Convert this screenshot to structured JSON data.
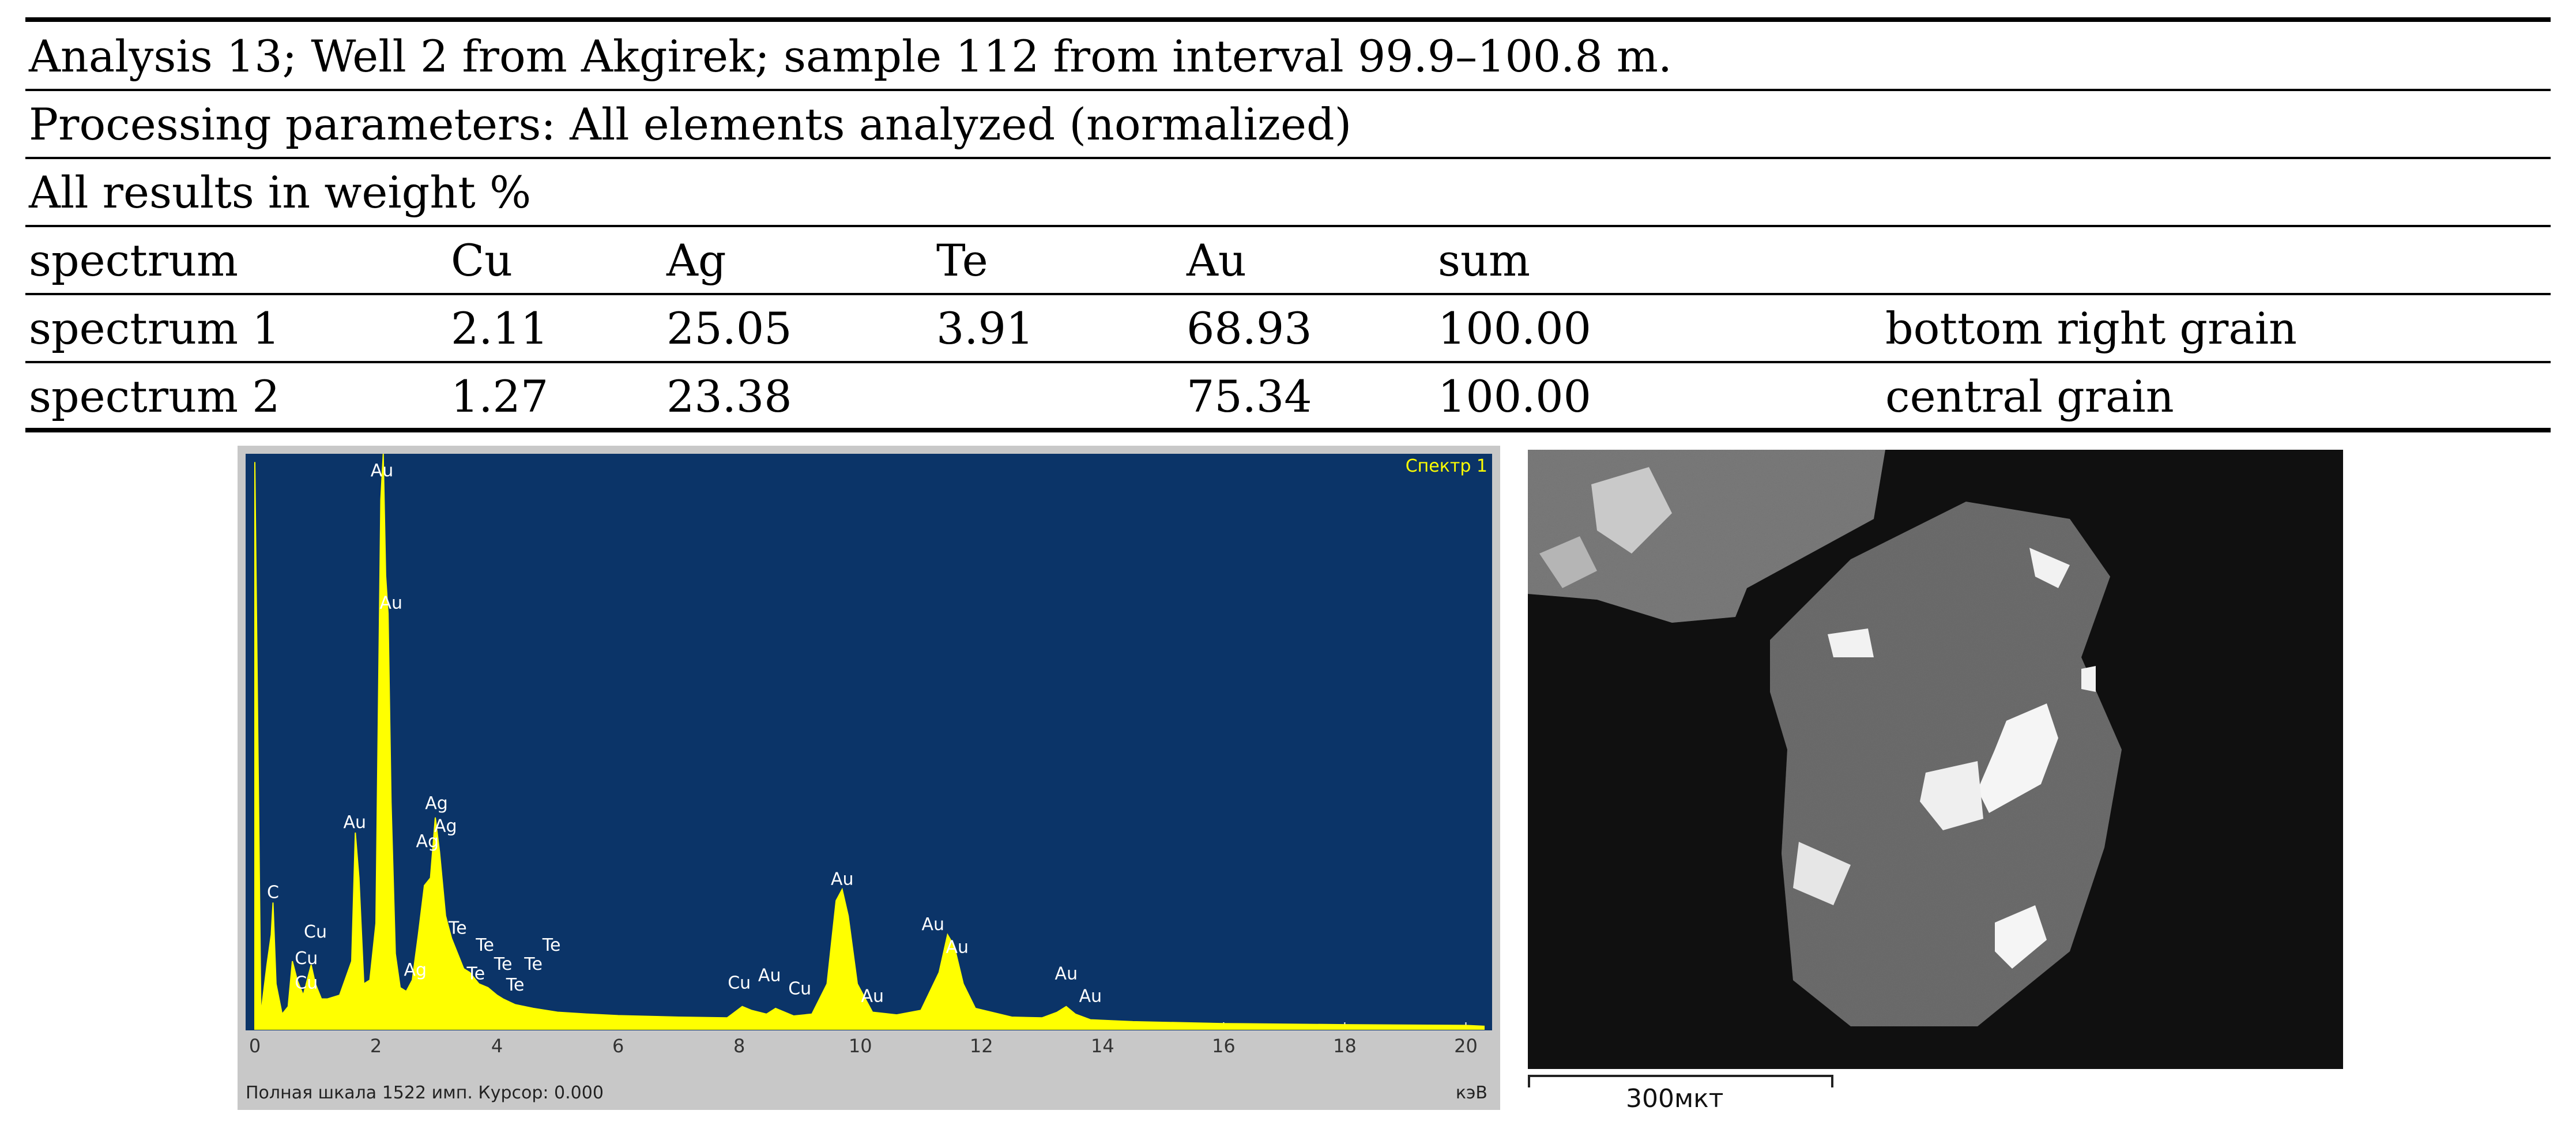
{
  "table": {
    "header_lines": [
      "Analysis 13; Well 2 from Akgirek; sample 112 from interval 99.9–100.8 m.",
      "Processing parameters: All elements analyzed (normalized)",
      "All results in weight %"
    ],
    "columns": [
      "spectrum",
      "Cu",
      "Ag",
      "Te",
      "Au",
      "sum",
      ""
    ],
    "rows": [
      [
        "spectrum 1",
        "2.11",
        "25.05",
        "3.91",
        "68.93",
        "100.00",
        "bottom right grain"
      ],
      [
        "spectrum 2",
        "1.27",
        "23.38",
        "",
        "75.34",
        "100.00",
        "central grain"
      ]
    ]
  },
  "spectrum": {
    "title": "Спектр 1",
    "status_text": "Полная шкала 1522 имп. Курсор: 0.000",
    "unit": "кэВ",
    "x_ticks": [
      "0",
      "2",
      "4",
      "6",
      "8",
      "10",
      "12",
      "14",
      "16",
      "18",
      "20"
    ],
    "peak_labels": [
      {
        "text": "Au",
        "kev": 2.1,
        "counts": 1450
      },
      {
        "text": "Au",
        "kev": 2.25,
        "counts": 1100
      },
      {
        "text": "Au",
        "kev": 1.65,
        "counts": 520
      },
      {
        "text": "Ag",
        "kev": 3.0,
        "counts": 570
      },
      {
        "text": "Ag",
        "kev": 3.15,
        "counts": 510
      },
      {
        "text": "Ag",
        "kev": 2.85,
        "counts": 470
      },
      {
        "text": "Te",
        "kev": 3.35,
        "counts": 240
      },
      {
        "text": "Te",
        "kev": 3.8,
        "counts": 195
      },
      {
        "text": "Te",
        "kev": 4.9,
        "counts": 195
      },
      {
        "text": "Te",
        "kev": 4.1,
        "counts": 145
      },
      {
        "text": "Te",
        "kev": 4.6,
        "counts": 145
      },
      {
        "text": "Te",
        "kev": 3.65,
        "counts": 120
      },
      {
        "text": "Te",
        "kev": 4.3,
        "counts": 90
      },
      {
        "text": "Ag",
        "kev": 2.65,
        "counts": 130
      },
      {
        "text": "C",
        "kev": 0.3,
        "counts": 335
      },
      {
        "text": "Cu",
        "kev": 1.0,
        "counts": 230
      },
      {
        "text": "Cu",
        "kev": 0.85,
        "counts": 160
      },
      {
        "text": "Cu",
        "kev": 0.85,
        "counts": 95
      },
      {
        "text": "Cu",
        "kev": 8.0,
        "counts": 95
      },
      {
        "text": "Au",
        "kev": 8.5,
        "counts": 115
      },
      {
        "text": "Cu",
        "kev": 9.0,
        "counts": 80
      },
      {
        "text": "Au",
        "kev": 9.7,
        "counts": 370
      },
      {
        "text": "Au",
        "kev": 10.2,
        "counts": 60
      },
      {
        "text": "Au",
        "kev": 11.2,
        "counts": 250
      },
      {
        "text": "Au",
        "kev": 11.6,
        "counts": 190
      },
      {
        "text": "Au",
        "kev": 13.4,
        "counts": 120
      },
      {
        "text": "Au",
        "kev": 13.8,
        "counts": 60
      }
    ]
  },
  "chart_data": {
    "type": "line",
    "title": "Спектр 1",
    "xlabel": "кэВ",
    "ylabel": "",
    "xlim": [
      0,
      20.3
    ],
    "ylim": [
      0,
      1522
    ],
    "x": [
      0.0,
      0.1,
      0.2,
      0.27,
      0.3,
      0.35,
      0.45,
      0.55,
      0.62,
      0.7,
      0.8,
      0.93,
      1.0,
      1.1,
      1.2,
      1.4,
      1.6,
      1.66,
      1.72,
      1.8,
      1.9,
      2.0,
      2.08,
      2.12,
      2.16,
      2.2,
      2.25,
      2.32,
      2.4,
      2.5,
      2.6,
      2.7,
      2.8,
      2.9,
      2.98,
      3.05,
      3.15,
      3.25,
      3.35,
      3.45,
      3.55,
      3.7,
      3.85,
      4.0,
      4.1,
      4.3,
      4.6,
      5.0,
      5.5,
      6.0,
      7.0,
      7.8,
      8.05,
      8.2,
      8.45,
      8.6,
      8.9,
      9.2,
      9.45,
      9.6,
      9.7,
      9.8,
      9.95,
      10.2,
      10.6,
      11.0,
      11.3,
      11.44,
      11.55,
      11.7,
      11.9,
      12.5,
      13.0,
      13.25,
      13.4,
      13.55,
      13.8,
      14.5,
      16.0,
      18.0,
      20.0,
      20.3
    ],
    "series": [
      {
        "values": [
          1500,
          40,
          170,
          250,
          335,
          120,
          40,
          60,
          180,
          130,
          90,
          170,
          120,
          80,
          80,
          90,
          180,
          520,
          400,
          120,
          130,
          280,
          1400,
          1522,
          1200,
          1100,
          600,
          200,
          110,
          100,
          130,
          250,
          380,
          400,
          560,
          470,
          300,
          240,
          200,
          160,
          150,
          120,
          110,
          90,
          80,
          65,
          55,
          45,
          40,
          36,
          32,
          30,
          60,
          50,
          40,
          55,
          35,
          40,
          120,
          340,
          370,
          300,
          120,
          45,
          38,
          50,
          150,
          250,
          220,
          120,
          55,
          32,
          30,
          45,
          60,
          40,
          25,
          20,
          15,
          12,
          10,
          8
        ]
      }
    ]
  },
  "sem": {
    "scale_label": "300мкт"
  }
}
